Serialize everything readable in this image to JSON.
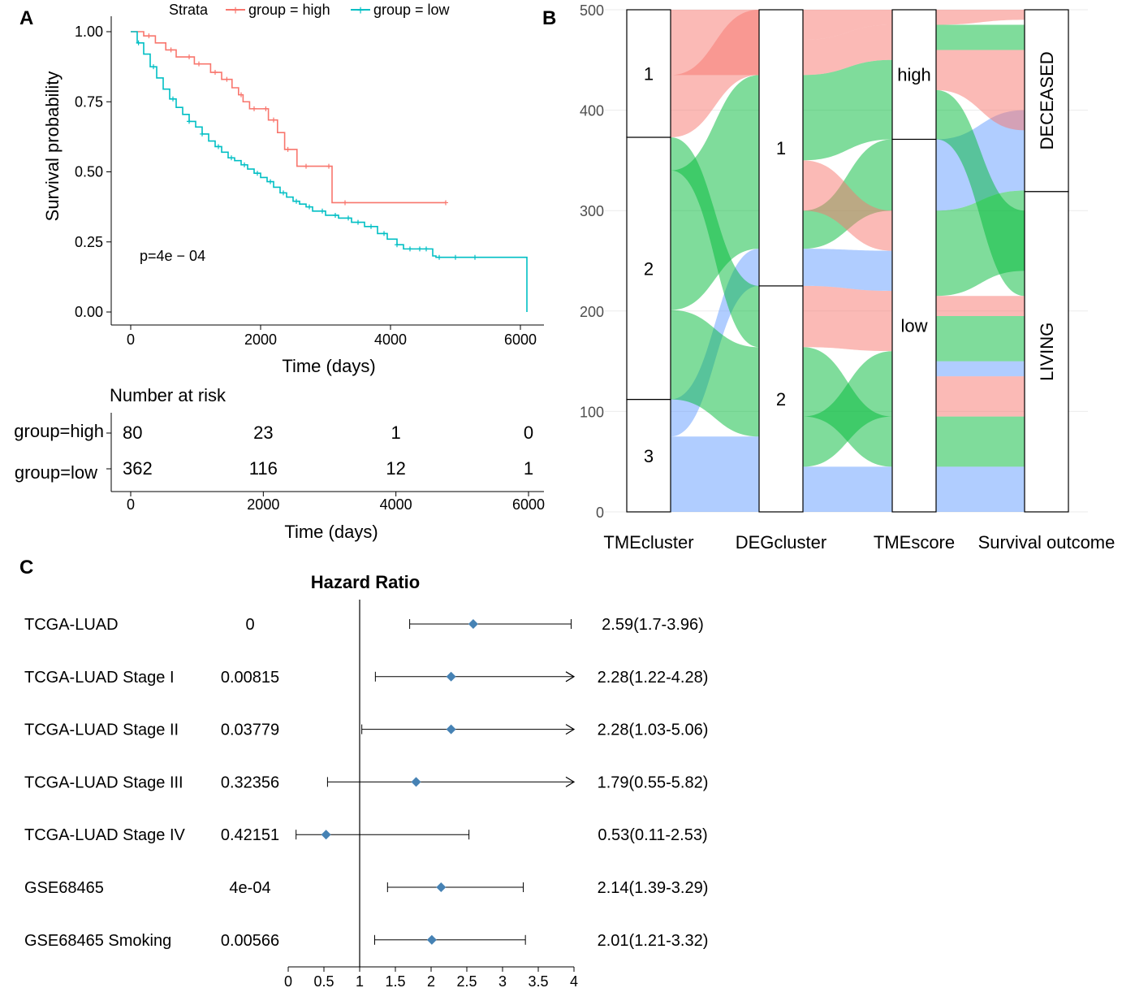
{
  "panels": {
    "a": "A",
    "b": "B",
    "c": "C"
  },
  "colors": {
    "high": "#F8766D",
    "low": "#00BFC4",
    "cluster1": "#F8766D",
    "cluster2": "#00BA38",
    "cluster3": "#619CFF",
    "forest_point": "#4682B4"
  },
  "chart_data": [
    {
      "type": "line",
      "chart": "kaplan-meier",
      "legend_title": "Strata",
      "xlabel": "Time (days)",
      "ylabel": "Survival probability",
      "xlim": [
        0,
        6000
      ],
      "ylim": [
        0,
        1
      ],
      "xticks": [
        "0",
        "2000",
        "4000",
        "6000"
      ],
      "yticks": [
        "0.00",
        "0.25",
        "0.50",
        "0.75",
        "1.00"
      ],
      "pvalue": "p=4e − 04",
      "series": [
        {
          "name": "group = high",
          "x": [
            0,
            200,
            380,
            540,
            700,
            980,
            1230,
            1400,
            1560,
            1660,
            1730,
            1830,
            2120,
            2260,
            2370,
            2560,
            3100,
            4850
          ],
          "y": [
            1.0,
            0.985,
            0.96,
            0.935,
            0.91,
            0.885,
            0.855,
            0.83,
            0.8,
            0.775,
            0.75,
            0.725,
            0.685,
            0.64,
            0.58,
            0.52,
            0.39,
            0.39
          ],
          "censor_x": [
            280,
            620,
            900,
            1050,
            1300,
            1480,
            1700,
            1900,
            2080,
            2200,
            2420,
            2700,
            3050,
            3300,
            4850
          ]
        },
        {
          "name": "group = low",
          "x": [
            0,
            100,
            200,
            300,
            400,
            500,
            600,
            700,
            800,
            900,
            1000,
            1100,
            1200,
            1300,
            1400,
            1500,
            1600,
            1700,
            1800,
            1900,
            2000,
            2100,
            2200,
            2300,
            2400,
            2500,
            2600,
            2700,
            2800,
            3000,
            3200,
            3400,
            3600,
            3800,
            3950,
            4100,
            4200,
            4500,
            4650,
            4700,
            6050,
            6100
          ],
          "y": [
            1.0,
            0.96,
            0.92,
            0.875,
            0.835,
            0.795,
            0.76,
            0.73,
            0.705,
            0.68,
            0.66,
            0.635,
            0.61,
            0.59,
            0.57,
            0.55,
            0.54,
            0.525,
            0.51,
            0.495,
            0.48,
            0.465,
            0.445,
            0.425,
            0.41,
            0.395,
            0.385,
            0.375,
            0.36,
            0.345,
            0.335,
            0.32,
            0.305,
            0.28,
            0.26,
            0.24,
            0.225,
            0.225,
            0.2,
            0.195,
            0.195,
            0.0
          ],
          "censor_x": [
            120,
            350,
            650,
            900,
            1100,
            1350,
            1550,
            1750,
            1950,
            2150,
            2350,
            2550,
            2750,
            2950,
            3150,
            3350,
            3500,
            3700,
            3900,
            4100,
            4300,
            4450,
            4550,
            4750,
            5000,
            5300
          ]
        }
      ]
    },
    {
      "type": "table",
      "chart": "risk-table",
      "title": "Number at risk",
      "xlabel": "Time (days)",
      "xticks": [
        "0",
        "2000",
        "4000",
        "6000"
      ],
      "rows": [
        {
          "label": "group=high",
          "values": [
            "80",
            "23",
            "1",
            "0"
          ]
        },
        {
          "label": "group=low",
          "values": [
            "362",
            "116",
            "12",
            "1"
          ]
        }
      ]
    },
    {
      "type": "sankey",
      "chart": "alluvial",
      "ylim": [
        0,
        500
      ],
      "yticks": [
        "0",
        "100",
        "200",
        "300",
        "400",
        "500"
      ],
      "axes": [
        "TMEcluster",
        "DEGcluster",
        "TMEscore",
        "Survival outcome"
      ],
      "strata": [
        [
          {
            "label": "3",
            "value": 112
          },
          {
            "label": "2",
            "value": 261
          },
          {
            "label": "1",
            "value": 127
          }
        ],
        [
          {
            "label": "2",
            "value": 225
          },
          {
            "label": "1",
            "value": 275
          }
        ],
        [
          {
            "label": "low",
            "value": 371
          },
          {
            "label": "high",
            "value": 129
          }
        ],
        [
          {
            "label": "LIVING",
            "value": 319
          },
          {
            "label": "DECEASED",
            "value": 181
          }
        ]
      ]
    },
    {
      "type": "forest",
      "chart": "hazard-ratio",
      "title": "Hazard Ratio",
      "xlim": [
        0,
        4
      ],
      "xticks": [
        "0",
        "0.5",
        "1",
        "1.5",
        "2",
        "2.5",
        "3",
        "3.5",
        "4"
      ],
      "reference": 1,
      "rows": [
        {
          "label": "TCGA-LUAD",
          "p": "0",
          "hr": 2.59,
          "lo": 1.7,
          "hi": 3.96,
          "text": "2.59(1.7-3.96)",
          "arrow": false
        },
        {
          "label": "TCGA-LUAD Stage I",
          "p": "0.00815",
          "hr": 2.28,
          "lo": 1.22,
          "hi": 4.28,
          "text": "2.28(1.22-4.28)",
          "arrow": true
        },
        {
          "label": "TCGA-LUAD Stage II",
          "p": "0.03779",
          "hr": 2.28,
          "lo": 1.03,
          "hi": 5.06,
          "text": "2.28(1.03-5.06)",
          "arrow": true
        },
        {
          "label": "TCGA-LUAD Stage III",
          "p": "0.32356",
          "hr": 1.79,
          "lo": 0.55,
          "hi": 5.82,
          "text": "1.79(0.55-5.82)",
          "arrow": true
        },
        {
          "label": "TCGA-LUAD Stage IV",
          "p": "0.42151",
          "hr": 0.53,
          "lo": 0.11,
          "hi": 2.53,
          "text": "0.53(0.11-2.53)",
          "arrow": false
        },
        {
          "label": "GSE68465",
          "p": "4e-04",
          "hr": 2.14,
          "lo": 1.39,
          "hi": 3.29,
          "text": "2.14(1.39-3.29)",
          "arrow": false
        },
        {
          "label": "GSE68465 Smoking",
          "p": "0.00566",
          "hr": 2.01,
          "lo": 1.21,
          "hi": 3.32,
          "text": "2.01(1.21-3.32)",
          "arrow": false
        }
      ]
    }
  ]
}
